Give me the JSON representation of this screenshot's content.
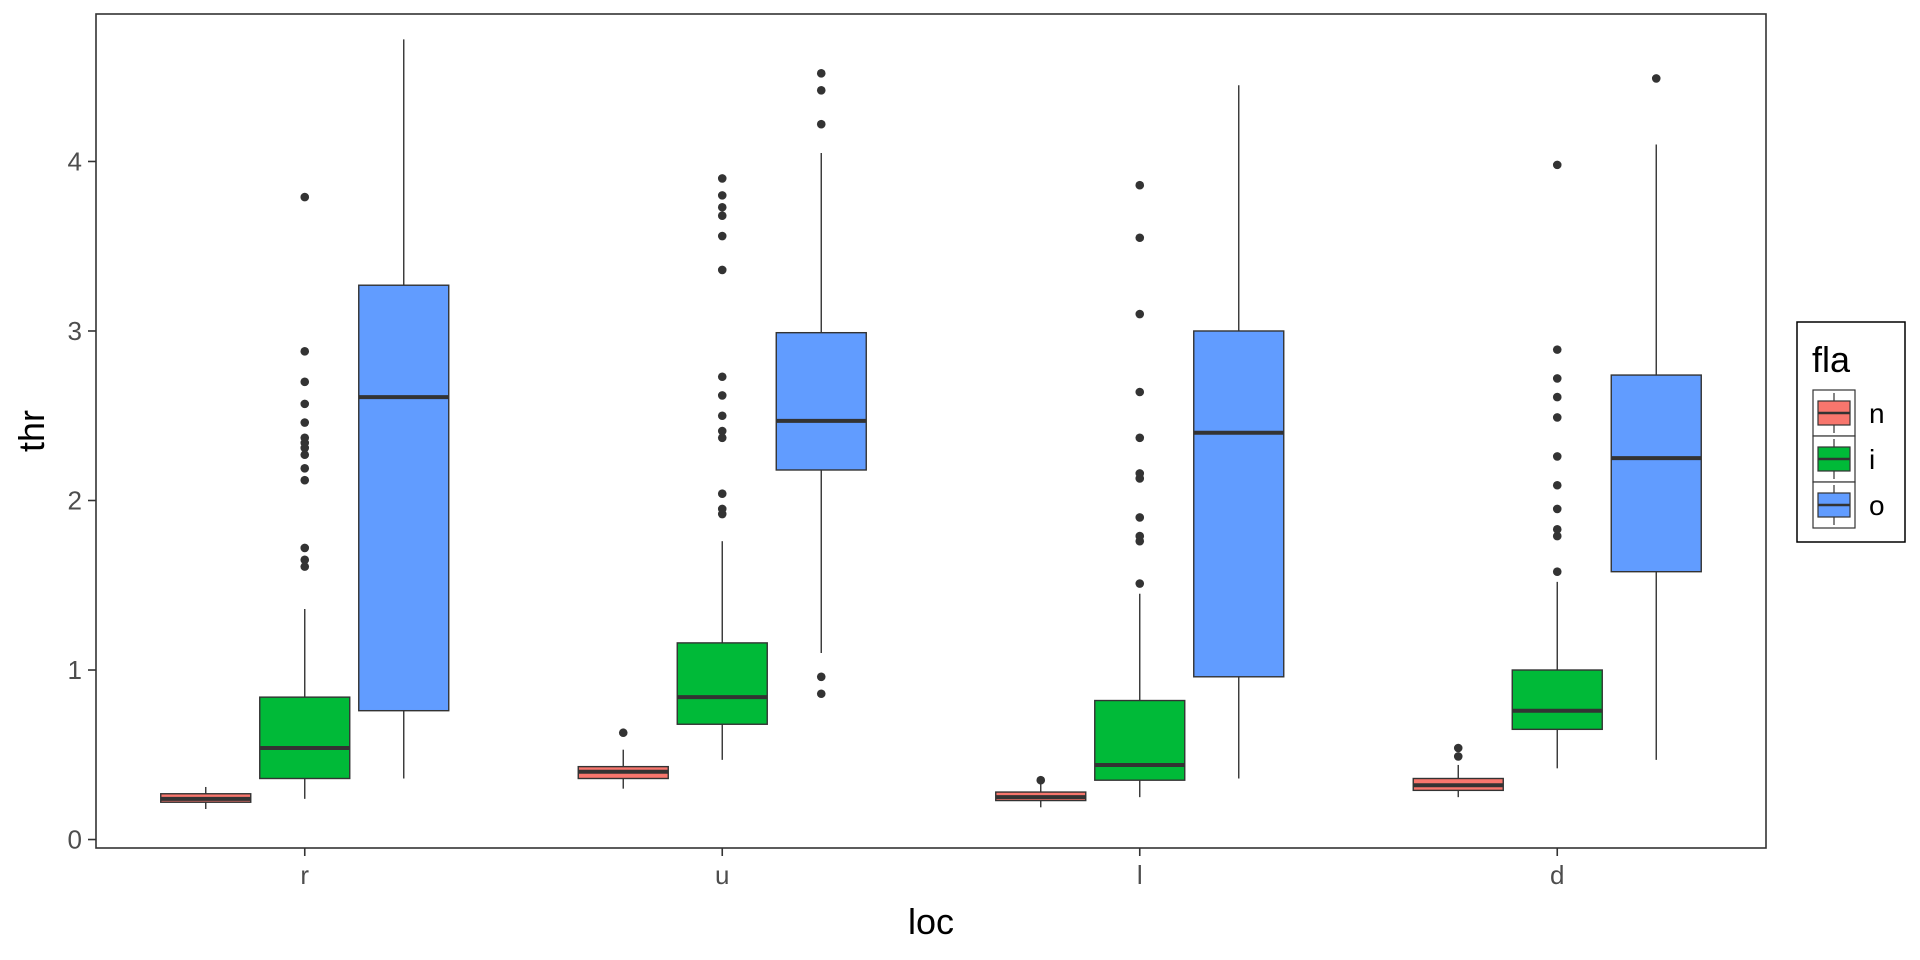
{
  "chart_data": {
    "type": "boxplot",
    "xlabel": "loc",
    "ylabel": "thr",
    "categories": [
      "r",
      "u",
      "l",
      "d"
    ],
    "y_ticks": [
      "0",
      "1",
      "2",
      "3",
      "4"
    ],
    "ylim": [
      -0.05,
      4.87
    ],
    "legend": {
      "title": "fla",
      "placement": "right",
      "entries": [
        "n",
        "i",
        "o"
      ]
    },
    "series": [
      {
        "name": "n",
        "color": "#F8766D",
        "boxes": [
          {
            "category": "r",
            "lower_whisker": 0.18,
            "q1": 0.22,
            "median": 0.24,
            "q3": 0.27,
            "upper_whisker": 0.31,
            "outliers": []
          },
          {
            "category": "u",
            "lower_whisker": 0.3,
            "q1": 0.36,
            "median": 0.4,
            "q3": 0.43,
            "upper_whisker": 0.53,
            "outliers": [
              0.63
            ]
          },
          {
            "category": "l",
            "lower_whisker": 0.19,
            "q1": 0.23,
            "median": 0.25,
            "q3": 0.28,
            "upper_whisker": 0.33,
            "outliers": [
              0.35
            ]
          },
          {
            "category": "d",
            "lower_whisker": 0.25,
            "q1": 0.29,
            "median": 0.32,
            "q3": 0.36,
            "upper_whisker": 0.44,
            "outliers": [
              0.49,
              0.54
            ]
          }
        ]
      },
      {
        "name": "i",
        "color": "#00BA38",
        "boxes": [
          {
            "category": "r",
            "lower_whisker": 0.24,
            "q1": 0.36,
            "median": 0.54,
            "q3": 0.84,
            "upper_whisker": 1.36,
            "outliers": [
              1.61,
              1.65,
              1.72,
              2.12,
              2.19,
              2.27,
              2.31,
              2.34,
              2.37,
              2.46,
              2.57,
              2.7,
              2.88,
              3.79
            ]
          },
          {
            "category": "u",
            "lower_whisker": 0.47,
            "q1": 0.68,
            "median": 0.84,
            "q3": 1.16,
            "upper_whisker": 1.76,
            "outliers": [
              1.92,
              1.95,
              2.04,
              2.37,
              2.41,
              2.5,
              2.62,
              2.73,
              3.36,
              3.56,
              3.68,
              3.73,
              3.8,
              3.9
            ]
          },
          {
            "category": "l",
            "lower_whisker": 0.25,
            "q1": 0.35,
            "median": 0.44,
            "q3": 0.82,
            "upper_whisker": 1.45,
            "outliers": [
              1.51,
              1.76,
              1.79,
              1.9,
              2.13,
              2.16,
              2.37,
              2.64,
              3.1,
              3.55,
              3.86
            ]
          },
          {
            "category": "d",
            "lower_whisker": 0.42,
            "q1": 0.65,
            "median": 0.76,
            "q3": 1.0,
            "upper_whisker": 1.52,
            "outliers": [
              1.58,
              1.79,
              1.83,
              1.95,
              2.09,
              2.26,
              2.49,
              2.61,
              2.72,
              2.89,
              3.98
            ]
          }
        ]
      },
      {
        "name": "o",
        "color": "#619CFF",
        "boxes": [
          {
            "category": "r",
            "lower_whisker": 0.36,
            "q1": 0.76,
            "median": 2.61,
            "q3": 3.27,
            "upper_whisker": 4.72,
            "outliers": []
          },
          {
            "category": "u",
            "lower_whisker": 1.1,
            "q1": 2.18,
            "median": 2.47,
            "q3": 2.99,
            "upper_whisker": 4.05,
            "outliers": [
              0.86,
              0.96,
              4.22,
              4.42,
              4.52
            ]
          },
          {
            "category": "l",
            "lower_whisker": 0.36,
            "q1": 0.96,
            "median": 2.4,
            "q3": 3.0,
            "upper_whisker": 4.45,
            "outliers": []
          },
          {
            "category": "d",
            "lower_whisker": 0.47,
            "q1": 1.58,
            "median": 2.25,
            "q3": 2.74,
            "upper_whisker": 4.1,
            "outliers": [
              4.49
            ]
          }
        ]
      }
    ]
  }
}
